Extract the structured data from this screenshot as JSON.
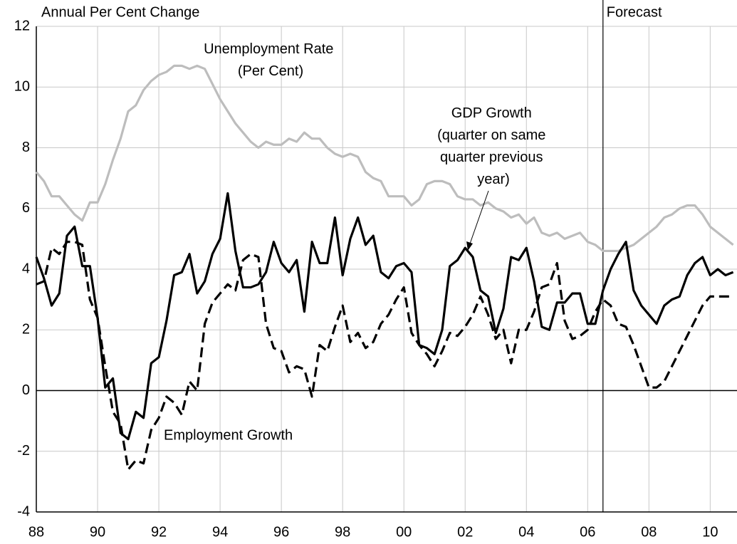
{
  "chart_data": {
    "type": "line",
    "y_label": "Annual Per Cent Change",
    "x": [
      1988,
      1988.25,
      1988.5,
      1988.75,
      1989,
      1989.25,
      1989.5,
      1989.75,
      1990,
      1990.25,
      1990.5,
      1990.75,
      1991,
      1991.25,
      1991.5,
      1991.75,
      1992,
      1992.25,
      1992.5,
      1992.75,
      1993,
      1993.25,
      1993.5,
      1993.75,
      1994,
      1994.25,
      1994.5,
      1994.75,
      1995,
      1995.25,
      1995.5,
      1995.75,
      1996,
      1996.25,
      1996.5,
      1996.75,
      1997,
      1997.25,
      1997.5,
      1997.75,
      1998,
      1998.25,
      1998.5,
      1998.75,
      1999,
      1999.25,
      1999.5,
      1999.75,
      2000,
      2000.25,
      2000.5,
      2000.75,
      2001,
      2001.25,
      2001.5,
      2001.75,
      2002,
      2002.25,
      2002.5,
      2002.75,
      2003,
      2003.25,
      2003.5,
      2003.75,
      2004,
      2004.25,
      2004.5,
      2004.75,
      2005,
      2005.25,
      2005.5,
      2005.75,
      2006,
      2006.25,
      2006.5,
      2006.75,
      2007,
      2007.25,
      2007.5,
      2007.75,
      2008,
      2008.25,
      2008.5,
      2008.75,
      2009,
      2009.25,
      2009.5,
      2009.75,
      2010,
      2010.25,
      2010.5,
      2010.75
    ],
    "series": [
      {
        "color": "#bdbdbd",
        "dash": false,
        "values": [
          7.2,
          6.9,
          6.4,
          6.4,
          6.1,
          5.8,
          5.6,
          6.2,
          6.2,
          6.8,
          7.6,
          8.3,
          9.2,
          9.4,
          9.9,
          10.2,
          10.4,
          10.5,
          10.7,
          10.7,
          10.6,
          10.7,
          10.6,
          10.1,
          9.6,
          9.2,
          8.8,
          8.5,
          8.2,
          8.0,
          8.2,
          8.1,
          8.1,
          8.3,
          8.2,
          8.5,
          8.3,
          8.3,
          8.0,
          7.8,
          7.7,
          7.8,
          7.7,
          7.2,
          7.0,
          6.9,
          6.4,
          6.4,
          6.4,
          6.1,
          6.3,
          6.8,
          6.9,
          6.9,
          6.8,
          6.4,
          6.3,
          6.3,
          6.1,
          6.2,
          6.0,
          5.9,
          5.7,
          5.8,
          5.5,
          5.7,
          5.2,
          5.1,
          5.2,
          5.0,
          5.1,
          5.2,
          4.9,
          4.8,
          4.6,
          4.6,
          4.6,
          4.7,
          4.8,
          5.0,
          5.2,
          5.4,
          5.7,
          5.8,
          6.0,
          6.1,
          6.1,
          5.8,
          5.4,
          5.2,
          5.0,
          4.8
        ]
      },
      {
        "color": "#000000",
        "dash": false,
        "values": [
          4.4,
          3.7,
          2.8,
          3.2,
          5.1,
          5.4,
          4.1,
          4.1,
          2.4,
          0.1,
          0.4,
          -1.4,
          -1.6,
          -0.7,
          -0.9,
          0.9,
          1.1,
          2.3,
          3.8,
          3.9,
          4.5,
          3.2,
          3.6,
          4.5,
          5.0,
          6.5,
          4.6,
          3.4,
          3.4,
          3.5,
          3.9,
          4.9,
          4.2,
          3.9,
          4.3,
          2.6,
          4.9,
          4.2,
          4.2,
          5.7,
          3.8,
          5.0,
          5.7,
          4.8,
          5.1,
          3.9,
          3.7,
          4.1,
          4.2,
          3.9,
          1.5,
          1.4,
          1.2,
          2.0,
          4.1,
          4.3,
          4.7,
          4.4,
          3.3,
          3.1,
          1.9,
          2.7,
          4.4,
          4.3,
          4.7,
          3.6,
          2.1,
          2.0,
          2.9,
          2.9,
          3.2,
          3.2,
          2.2,
          2.2,
          3.3,
          4.0,
          4.5,
          4.9,
          3.3,
          2.8,
          2.5,
          2.2,
          2.8,
          3.0,
          3.1,
          3.8,
          4.2,
          4.4,
          3.8,
          4.0,
          3.8,
          3.9
        ]
      },
      {
        "color": "#000000",
        "dash": true,
        "values": [
          3.5,
          3.6,
          4.7,
          4.5,
          4.9,
          4.9,
          4.8,
          3.0,
          2.4,
          0.8,
          -0.7,
          -1.1,
          -2.6,
          -2.3,
          -2.4,
          -1.3,
          -0.9,
          -0.2,
          -0.4,
          -0.8,
          0.3,
          0.0,
          2.2,
          2.9,
          3.2,
          3.5,
          3.3,
          4.3,
          4.5,
          4.4,
          2.2,
          1.4,
          1.3,
          0.6,
          0.8,
          0.7,
          -0.2,
          1.5,
          1.3,
          2.1,
          2.8,
          1.6,
          1.9,
          1.4,
          1.6,
          2.2,
          2.5,
          3.0,
          3.4,
          1.9,
          1.5,
          1.2,
          0.8,
          1.3,
          1.9,
          1.8,
          2.1,
          2.5,
          3.1,
          2.5,
          1.7,
          2.0,
          0.9,
          2.0,
          2.0,
          2.6,
          3.4,
          3.5,
          4.2,
          2.3,
          1.7,
          1.8,
          2.0,
          2.6,
          3.0,
          2.8,
          2.2,
          2.1,
          1.5,
          0.8,
          0.1,
          0.1,
          0.3,
          0.8,
          1.3,
          1.8,
          2.3,
          2.8,
          3.1,
          3.1,
          3.1,
          3.1
        ]
      }
    ],
    "annotations": {
      "unemployment": [
        "Unemployment Rate",
        "(Per Cent)"
      ],
      "gdp": [
        "GDP Growth",
        "(quarter on same",
        "quarter previous",
        "year)"
      ],
      "employment": "Employment Growth",
      "forecast": {
        "text": "Forecast",
        "x": 2006.5
      }
    },
    "xlim": [
      1988,
      2010.875
    ],
    "xticks": [
      {
        "value": 1988,
        "label": "88"
      },
      {
        "value": 1990,
        "label": "90"
      },
      {
        "value": 1992,
        "label": "92"
      },
      {
        "value": 1994,
        "label": "94"
      },
      {
        "value": 1996,
        "label": "96"
      },
      {
        "value": 1998,
        "label": "98"
      },
      {
        "value": 2000,
        "label": "00"
      },
      {
        "value": 2002,
        "label": "02"
      },
      {
        "value": 2004,
        "label": "04"
      },
      {
        "value": 2006,
        "label": "06"
      },
      {
        "value": 2008,
        "label": "08"
      },
      {
        "value": 2010,
        "label": "10"
      }
    ],
    "ylim": [
      -4,
      12
    ],
    "yticks": [
      -4,
      -2,
      0,
      2,
      4,
      6,
      8,
      10,
      12
    ],
    "grid": true
  }
}
